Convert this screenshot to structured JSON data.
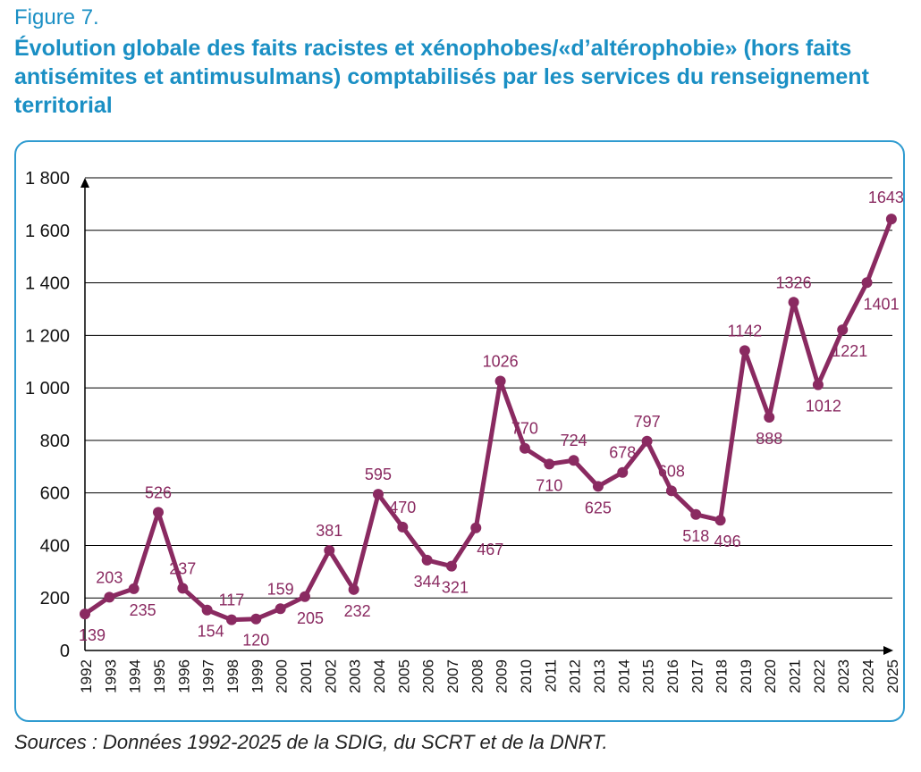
{
  "figure_label": "Figure 7.",
  "title": "Évolution globale des faits racistes et xénophobes/«d’altérophobie» (hors faits antisémites et antimusulmans) comptabilisés par les services du renseignement territorial",
  "source": "Sources : Données 1992-2025 de la SDIG, du SCRT et de la DNRT.",
  "colors": {
    "title": "#1a8fc4",
    "frame": "#2f9bd0",
    "series": "#8a2a61",
    "grid": "#000000"
  },
  "chart_data": {
    "type": "line",
    "x": [
      "1992",
      "1993",
      "1994",
      "1995",
      "1996",
      "1997",
      "1998",
      "1999",
      "2000",
      "2001",
      "2002",
      "2003",
      "2004",
      "2005",
      "2006",
      "2007",
      "2008",
      "2009",
      "2010",
      "2011",
      "2012",
      "2013",
      "2014",
      "2015",
      "2016",
      "2017",
      "2018",
      "2019",
      "2020",
      "2021",
      "2022",
      "2023",
      "2024",
      "2025"
    ],
    "series": [
      {
        "values": [
          139,
          203,
          235,
          526,
          237,
          154,
          117,
          120,
          159,
          205,
          381,
          232,
          595,
          470,
          344,
          321,
          467,
          1026,
          770,
          710,
          724,
          625,
          678,
          797,
          608,
          518,
          496,
          1142,
          888,
          1326,
          1012,
          1221,
          1401,
          1643
        ]
      }
    ],
    "data_labels": [
      "139",
      "203",
      "235",
      "526",
      "237",
      "154",
      "117",
      "120",
      "159",
      "205",
      "381",
      "232",
      "595",
      "470",
      "344",
      "321",
      "467",
      "1026",
      "770",
      "710",
      "724",
      "625",
      "678",
      "797",
      "608",
      "518",
      "496",
      "1142",
      "888",
      "1326",
      "1012",
      "1221",
      "1401",
      "1643"
    ],
    "yticks": [
      "0",
      "200",
      "400",
      "600",
      "800",
      "1 000",
      "1 200",
      "1 400",
      "1 600",
      "1 800"
    ],
    "ylim": [
      0,
      1800
    ],
    "grid": true,
    "xlabel": "",
    "ylabel": ""
  }
}
